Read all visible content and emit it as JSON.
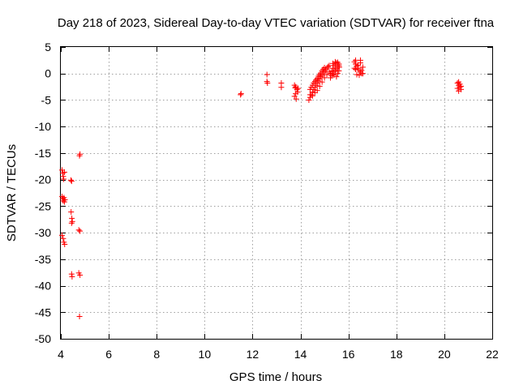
{
  "chart_data": {
    "type": "scatter",
    "title": "Day 218 of 2023, Sidereal Day-to-day VTEC variation (SDTVAR) for receiver ftna",
    "xlabel": "GPS time / hours",
    "ylabel": "SDTVAR / TECUs",
    "xlim": [
      4,
      22
    ],
    "ylim": [
      -50,
      5
    ],
    "xticks": [
      4,
      6,
      8,
      10,
      12,
      14,
      16,
      18,
      20,
      22
    ],
    "yticks": [
      5,
      0,
      -5,
      -10,
      -15,
      -20,
      -25,
      -30,
      -35,
      -40,
      -45,
      -50
    ],
    "grid": true,
    "marker": "+",
    "color": "#ff0000",
    "series": [
      {
        "name": "SDTVAR",
        "points": [
          [
            4.05,
            -18.2
          ],
          [
            4.08,
            -18.8
          ],
          [
            4.1,
            -19.4
          ],
          [
            4.12,
            -19.9
          ],
          [
            4.15,
            -18.6
          ],
          [
            4.05,
            -23.2
          ],
          [
            4.08,
            -23.6
          ],
          [
            4.1,
            -24.0
          ],
          [
            4.13,
            -23.4
          ],
          [
            4.15,
            -24.2
          ],
          [
            4.17,
            -23.8
          ],
          [
            4.05,
            -30.5
          ],
          [
            4.1,
            -31.1
          ],
          [
            4.13,
            -31.8
          ],
          [
            4.16,
            -32.2
          ],
          [
            4.42,
            -20.1
          ],
          [
            4.45,
            -20.3
          ],
          [
            4.43,
            -26.1
          ],
          [
            4.46,
            -27.3
          ],
          [
            4.48,
            -27.9
          ],
          [
            4.45,
            -28.2
          ],
          [
            4.45,
            -37.8
          ],
          [
            4.47,
            -38.3
          ],
          [
            4.78,
            -15.5
          ],
          [
            4.8,
            -15.2
          ],
          [
            4.75,
            -29.5
          ],
          [
            4.8,
            -29.7
          ],
          [
            4.75,
            -37.6
          ],
          [
            4.8,
            -38.0
          ],
          [
            4.78,
            -45.8
          ],
          [
            11.5,
            -4.0
          ],
          [
            11.52,
            -3.8
          ],
          [
            12.6,
            -0.2
          ],
          [
            12.6,
            -1.5
          ],
          [
            12.62,
            -1.8
          ],
          [
            13.2,
            -1.8
          ],
          [
            13.2,
            -2.6
          ],
          [
            13.75,
            -2.2
          ],
          [
            13.8,
            -2.5
          ],
          [
            13.85,
            -3.0
          ],
          [
            13.8,
            -3.8
          ],
          [
            13.75,
            -4.3
          ],
          [
            13.82,
            -4.8
          ],
          [
            13.9,
            -2.8
          ],
          [
            13.88,
            -3.5
          ],
          [
            13.78,
            -2.7
          ],
          [
            14.35,
            -5.0
          ],
          [
            14.4,
            -4.5
          ],
          [
            14.45,
            -4.0
          ],
          [
            14.5,
            -3.5
          ],
          [
            14.55,
            -3.0
          ],
          [
            14.6,
            -2.6
          ],
          [
            14.65,
            -2.2
          ],
          [
            14.7,
            -1.8
          ],
          [
            14.75,
            -1.4
          ],
          [
            14.8,
            -1.0
          ],
          [
            14.85,
            -0.6
          ],
          [
            14.9,
            -0.3
          ],
          [
            14.95,
            0.1
          ],
          [
            15.0,
            0.4
          ],
          [
            15.05,
            0.7
          ],
          [
            15.1,
            1.0
          ],
          [
            15.15,
            1.3
          ],
          [
            15.2,
            1.5
          ],
          [
            14.4,
            -3.0
          ],
          [
            14.45,
            -2.6
          ],
          [
            14.5,
            -2.2
          ],
          [
            14.55,
            -1.8
          ],
          [
            14.6,
            -1.5
          ],
          [
            14.65,
            -1.2
          ],
          [
            14.7,
            -0.9
          ],
          [
            14.75,
            -0.5
          ],
          [
            14.8,
            -0.2
          ],
          [
            14.85,
            0.1
          ],
          [
            14.9,
            0.5
          ],
          [
            14.95,
            0.8
          ],
          [
            15.0,
            1.1
          ],
          [
            14.4,
            -4.0
          ],
          [
            14.5,
            -4.2
          ],
          [
            14.6,
            -3.6
          ],
          [
            14.7,
            -3.2
          ],
          [
            14.8,
            -2.4
          ],
          [
            14.9,
            -1.6
          ],
          [
            15.0,
            -0.8
          ],
          [
            15.1,
            -0.2
          ],
          [
            15.2,
            0.3
          ],
          [
            15.25,
            0.0
          ],
          [
            15.3,
            0.5
          ],
          [
            15.35,
            1.0
          ],
          [
            15.4,
            1.5
          ],
          [
            15.45,
            1.8
          ],
          [
            15.5,
            2.0
          ],
          [
            15.55,
            2.1
          ],
          [
            15.6,
            1.8
          ],
          [
            15.62,
            1.2
          ],
          [
            15.25,
            -0.8
          ],
          [
            15.3,
            -0.4
          ],
          [
            15.35,
            -0.1
          ],
          [
            15.4,
            0.3
          ],
          [
            15.45,
            0.6
          ],
          [
            15.5,
            0.9
          ],
          [
            15.55,
            1.2
          ],
          [
            15.6,
            1.5
          ],
          [
            15.3,
            0.0
          ],
          [
            15.4,
            -0.3
          ],
          [
            15.5,
            -0.6
          ],
          [
            15.55,
            0.0
          ],
          [
            15.6,
            0.5
          ],
          [
            15.45,
            2.2
          ],
          [
            15.35,
            1.9
          ],
          [
            16.25,
            2.2
          ],
          [
            16.3,
            1.8
          ],
          [
            16.35,
            1.4
          ],
          [
            16.4,
            1.0
          ],
          [
            16.45,
            0.6
          ],
          [
            16.5,
            0.3
          ],
          [
            16.55,
            0.0
          ],
          [
            16.6,
            0.0
          ],
          [
            16.3,
            0.8
          ],
          [
            16.4,
            1.6
          ],
          [
            16.5,
            2.0
          ],
          [
            16.6,
            1.2
          ],
          [
            16.35,
            -0.2
          ],
          [
            16.45,
            -0.3
          ],
          [
            16.55,
            0.6
          ],
          [
            16.3,
            2.5
          ],
          [
            16.5,
            2.5
          ],
          [
            16.25,
            1.0
          ],
          [
            20.55,
            -1.8
          ],
          [
            20.6,
            -2.2
          ],
          [
            20.65,
            -2.6
          ],
          [
            20.7,
            -3.0
          ],
          [
            20.6,
            -3.3
          ],
          [
            20.55,
            -2.8
          ],
          [
            20.65,
            -2.0
          ],
          [
            20.7,
            -2.4
          ],
          [
            20.6,
            -1.6
          ]
        ]
      }
    ]
  }
}
